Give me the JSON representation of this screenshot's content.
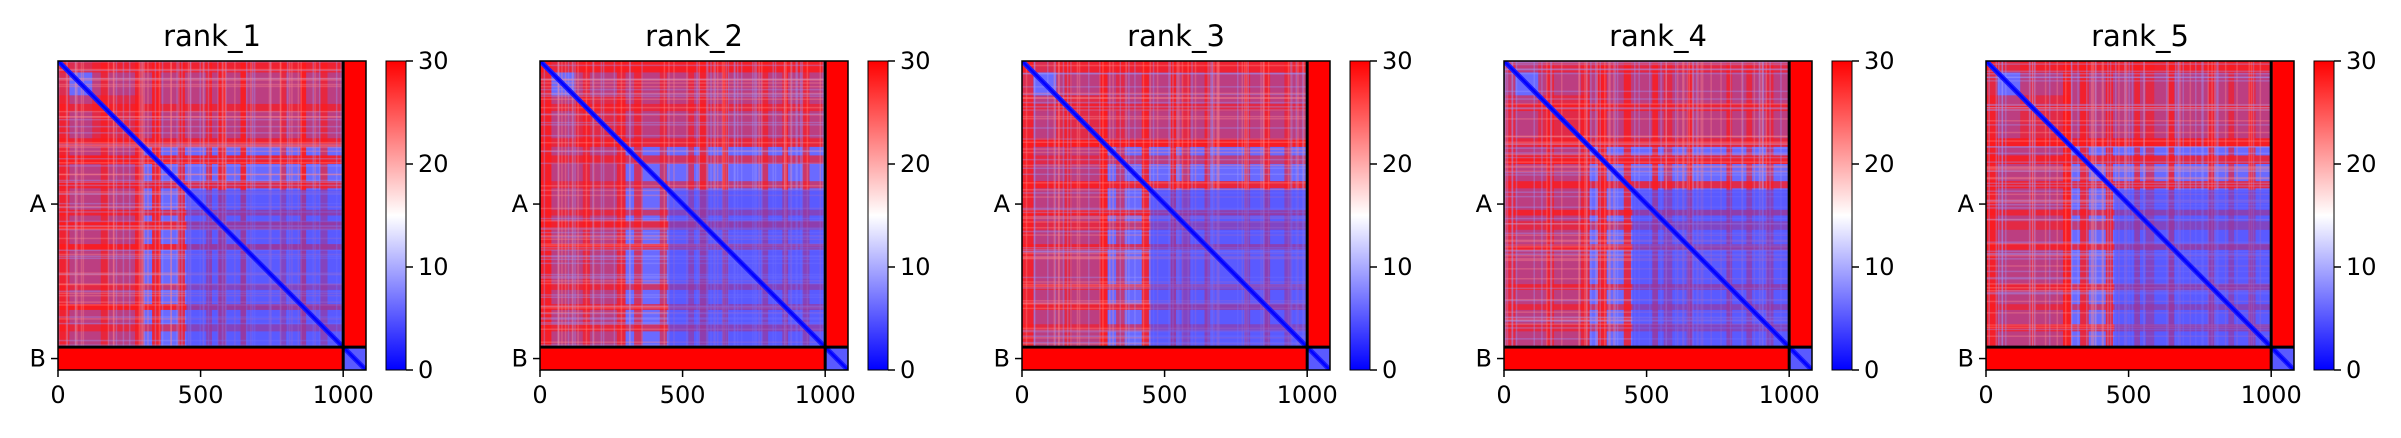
{
  "chart_data": [
    {
      "type": "heatmap",
      "title": "rank_1",
      "x_ticks": [
        0,
        500,
        1000
      ],
      "xlim": [
        0,
        1080
      ],
      "y_tick_labels": [
        "A",
        "B"
      ],
      "chain_lengths": {
        "A": 1000,
        "B": 80
      },
      "colorbar": {
        "min": 0,
        "max": 30,
        "ticks": [
          0,
          10,
          20,
          30
        ],
        "colors": [
          "#0000ff",
          "#ffffff",
          "#ff0000"
        ]
      }
    },
    {
      "type": "heatmap",
      "title": "rank_2",
      "x_ticks": [
        0,
        500,
        1000
      ],
      "xlim": [
        0,
        1080
      ],
      "y_tick_labels": [
        "A",
        "B"
      ],
      "chain_lengths": {
        "A": 1000,
        "B": 80
      },
      "colorbar": {
        "min": 0,
        "max": 30,
        "ticks": [
          0,
          10,
          20,
          30
        ],
        "colors": [
          "#0000ff",
          "#ffffff",
          "#ff0000"
        ]
      }
    },
    {
      "type": "heatmap",
      "title": "rank_3",
      "x_ticks": [
        0,
        500,
        1000
      ],
      "xlim": [
        0,
        1080
      ],
      "y_tick_labels": [
        "A",
        "B"
      ],
      "chain_lengths": {
        "A": 1000,
        "B": 80
      },
      "colorbar": {
        "min": 0,
        "max": 30,
        "ticks": [
          0,
          10,
          20,
          30
        ],
        "colors": [
          "#0000ff",
          "#ffffff",
          "#ff0000"
        ]
      }
    },
    {
      "type": "heatmap",
      "title": "rank_4",
      "x_ticks": [
        0,
        500,
        1000
      ],
      "xlim": [
        0,
        1080
      ],
      "y_tick_labels": [
        "A",
        "B"
      ],
      "chain_lengths": {
        "A": 1000,
        "B": 80
      },
      "colorbar": {
        "min": 0,
        "max": 30,
        "ticks": [
          0,
          10,
          20,
          30
        ],
        "colors": [
          "#0000ff",
          "#ffffff",
          "#ff0000"
        ]
      }
    },
    {
      "type": "heatmap",
      "title": "rank_5",
      "x_ticks": [
        0,
        500,
        1000
      ],
      "xlim": [
        0,
        1080
      ],
      "y_tick_labels": [
        "A",
        "B"
      ],
      "chain_lengths": {
        "A": 1000,
        "B": 80
      },
      "colorbar": {
        "min": 0,
        "max": 30,
        "ticks": [
          0,
          10,
          20,
          30
        ],
        "colors": [
          "#0000ff",
          "#ffffff",
          "#ff0000"
        ]
      }
    }
  ]
}
